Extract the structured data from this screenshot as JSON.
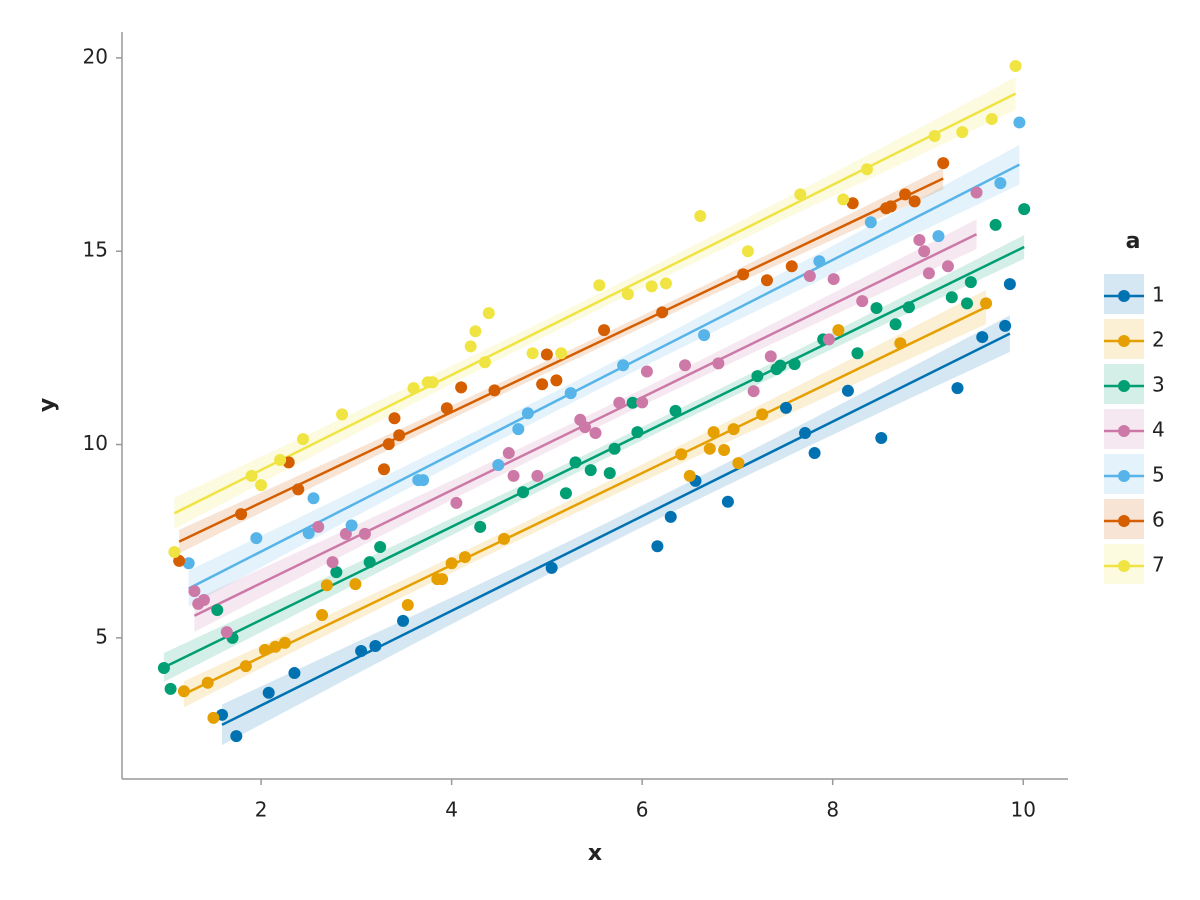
{
  "chart_data": {
    "type": "scatter",
    "x_label": "x",
    "y_label": "y",
    "legend_title": "a",
    "legend": "right",
    "xlim": [
      0.54,
      10.47
    ],
    "ylim": [
      1.35,
      20.67
    ],
    "xticks": [
      2,
      4,
      6,
      8,
      10
    ],
    "yticks": [
      5,
      10,
      15,
      20
    ],
    "regression": true,
    "confidence_band": true,
    "series": [
      {
        "name": "1",
        "color": "#0072b2",
        "x": [
          1.59,
          1.74,
          2.08,
          2.35,
          3.05,
          3.2,
          3.49,
          5.05,
          6.16,
          6.3,
          6.56,
          6.9,
          7.51,
          7.71,
          7.81,
          8.16,
          8.51,
          9.31,
          9.57,
          9.81,
          9.86
        ],
        "values": [
          3.01,
          2.46,
          3.58,
          4.09,
          4.66,
          4.79,
          5.44,
          6.81,
          7.37,
          8.13,
          9.06,
          8.52,
          10.95,
          10.3,
          9.78,
          11.39,
          10.17,
          11.46,
          12.78,
          13.07,
          14.15
        ]
      },
      {
        "name": "2",
        "color": "#e69f00",
        "x": [
          1.19,
          1.5,
          1.44,
          1.84,
          2.04,
          2.15,
          2.25,
          2.64,
          2.69,
          2.99,
          3.54,
          3.85,
          3.9,
          4.0,
          4.14,
          4.55,
          6.41,
          6.5,
          6.71,
          6.75,
          6.86,
          6.96,
          7.01,
          7.26,
          8.06,
          8.71,
          9.61
        ],
        "values": [
          3.62,
          2.93,
          3.84,
          4.27,
          4.69,
          4.77,
          4.87,
          5.59,
          6.36,
          6.39,
          5.85,
          6.52,
          6.52,
          6.93,
          7.09,
          7.56,
          9.75,
          9.19,
          9.89,
          10.32,
          9.86,
          10.4,
          9.52,
          10.78,
          12.96,
          12.62,
          13.65
        ]
      },
      {
        "name": "3",
        "color": "#009e73",
        "x": [
          0.98,
          1.05,
          1.54,
          1.7,
          2.79,
          3.14,
          3.25,
          4.3,
          4.75,
          5.2,
          5.3,
          5.46,
          5.66,
          5.71,
          5.9,
          5.95,
          6.35,
          7.21,
          7.41,
          7.45,
          7.6,
          7.9,
          8.26,
          8.46,
          8.66,
          8.8,
          9.25,
          9.41,
          9.45,
          9.71,
          10.01
        ],
        "values": [
          4.22,
          3.68,
          5.72,
          5.0,
          6.7,
          6.96,
          7.35,
          7.87,
          8.77,
          8.74,
          9.54,
          9.34,
          9.26,
          9.89,
          11.08,
          10.32,
          10.87,
          11.77,
          11.95,
          12.04,
          12.08,
          12.72,
          12.36,
          13.53,
          13.11,
          13.55,
          13.81,
          13.65,
          14.2,
          15.68,
          16.09
        ]
      },
      {
        "name": "4",
        "color": "#cc79a7",
        "x": [
          1.3,
          1.34,
          1.4,
          1.64,
          2.6,
          2.75,
          2.89,
          3.09,
          4.05,
          4.6,
          4.65,
          4.9,
          5.35,
          5.4,
          5.51,
          5.76,
          6.0,
          6.05,
          6.45,
          6.8,
          7.17,
          7.35,
          7.76,
          7.96,
          8.01,
          8.31,
          8.91,
          8.96,
          9.01,
          9.21,
          9.51
        ],
        "values": [
          6.21,
          5.88,
          5.98,
          5.15,
          7.87,
          6.96,
          7.69,
          7.69,
          8.49,
          9.78,
          9.19,
          9.19,
          10.64,
          10.45,
          10.3,
          11.08,
          11.09,
          11.89,
          12.05,
          12.1,
          11.38,
          12.28,
          14.36,
          12.72,
          14.28,
          13.71,
          15.29,
          15.0,
          14.43,
          14.61,
          16.52
        ]
      },
      {
        "name": "5",
        "color": "#56b4e9",
        "x": [
          1.24,
          1.95,
          2.5,
          2.55,
          2.95,
          3.65,
          3.7,
          4.49,
          4.7,
          4.8,
          5.25,
          5.8,
          6.65,
          7.86,
          8.4,
          9.11,
          9.76,
          9.96
        ],
        "values": [
          6.93,
          7.58,
          7.71,
          8.61,
          7.91,
          9.08,
          9.08,
          9.47,
          10.4,
          10.81,
          11.33,
          12.05,
          12.83,
          14.74,
          15.75,
          15.39,
          16.76,
          18.33
        ]
      },
      {
        "name": "6",
        "color": "#d55e00",
        "x": [
          1.14,
          1.79,
          2.29,
          2.39,
          3.29,
          3.34,
          3.4,
          3.45,
          3.95,
          4.1,
          4.45,
          4.95,
          5.0,
          5.1,
          5.6,
          6.21,
          7.06,
          7.31,
          7.57,
          8.21,
          8.56,
          8.61,
          8.76,
          8.86,
          9.16
        ],
        "values": [
          6.99,
          8.2,
          9.54,
          8.84,
          9.36,
          10.01,
          10.68,
          10.24,
          10.94,
          11.48,
          11.4,
          11.56,
          12.33,
          11.66,
          12.96,
          13.42,
          14.4,
          14.25,
          14.61,
          16.24,
          16.11,
          16.16,
          16.47,
          16.29,
          17.28
        ]
      },
      {
        "name": "7",
        "color": "#f0e442",
        "x": [
          1.09,
          1.9,
          2.0,
          2.2,
          2.44,
          2.85,
          3.6,
          3.75,
          3.8,
          4.2,
          4.25,
          4.35,
          4.39,
          4.85,
          5.15,
          5.55,
          5.85,
          6.1,
          6.25,
          6.61,
          7.11,
          7.66,
          8.11,
          8.36,
          9.07,
          9.36,
          9.67,
          9.92
        ],
        "values": [
          7.22,
          9.19,
          8.95,
          9.6,
          10.14,
          10.78,
          11.46,
          11.61,
          11.61,
          12.54,
          12.93,
          12.13,
          13.4,
          12.36,
          12.36,
          14.12,
          13.89,
          14.09,
          14.17,
          15.91,
          15.0,
          16.47,
          16.34,
          17.12,
          17.98,
          18.08,
          18.42,
          19.79
        ]
      }
    ]
  }
}
